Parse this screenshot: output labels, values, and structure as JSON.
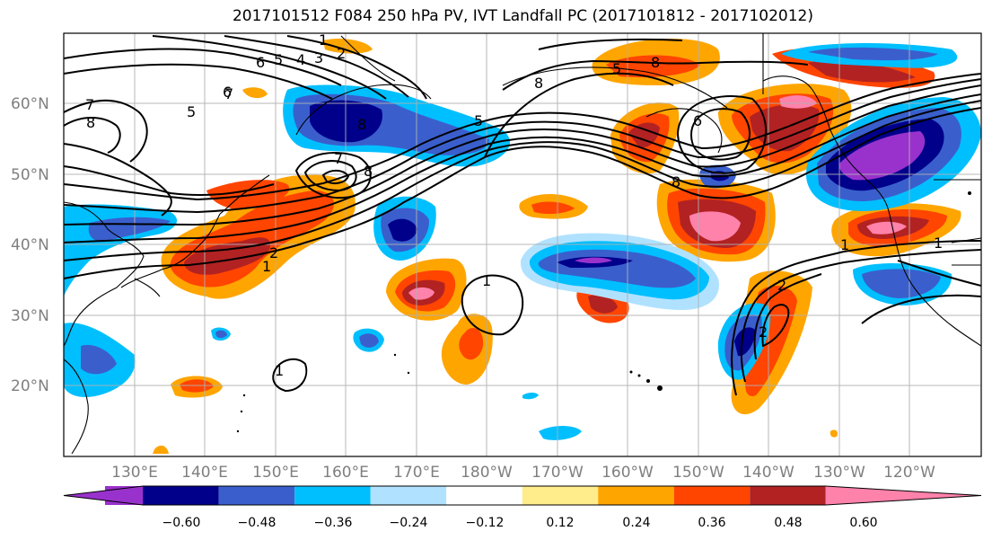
{
  "title": "2017101512 F084 250 hPa PV, IVT Landfall PC (2017101812 - 2017102012)",
  "lat_labels": [
    "60°N",
    "50°N",
    "40°N",
    "30°N",
    "20°N"
  ],
  "lon_labels": [
    "130°E",
    "140°E",
    "150°E",
    "160°E",
    "170°E",
    "180°W",
    "170°W",
    "160°W",
    "150°W",
    "140°W",
    "130°W",
    "120°W"
  ],
  "colorbar": {
    "ticks": [
      "−0.60",
      "−0.48",
      "−0.36",
      "−0.24",
      "−0.12",
      "0.12",
      "0.24",
      "0.36",
      "0.48",
      "0.60"
    ],
    "colors": [
      "#9932cc",
      "#00008b",
      "#3a5fcd",
      "#00bfff",
      "#b0e2ff",
      "#ffffff",
      "#ffec8b",
      "#ffa500",
      "#ff4500",
      "#b22222",
      "#ff82ab"
    ]
  },
  "contour_labels": [
    "1",
    "2",
    "3",
    "4",
    "5",
    "6",
    "7",
    "8",
    "5",
    "6",
    "7",
    "8",
    "5",
    "8",
    "8",
    "2",
    "1",
    "1",
    "2",
    "1",
    "2",
    "1",
    "7",
    "8",
    "5",
    "8",
    "6",
    "1"
  ]
}
